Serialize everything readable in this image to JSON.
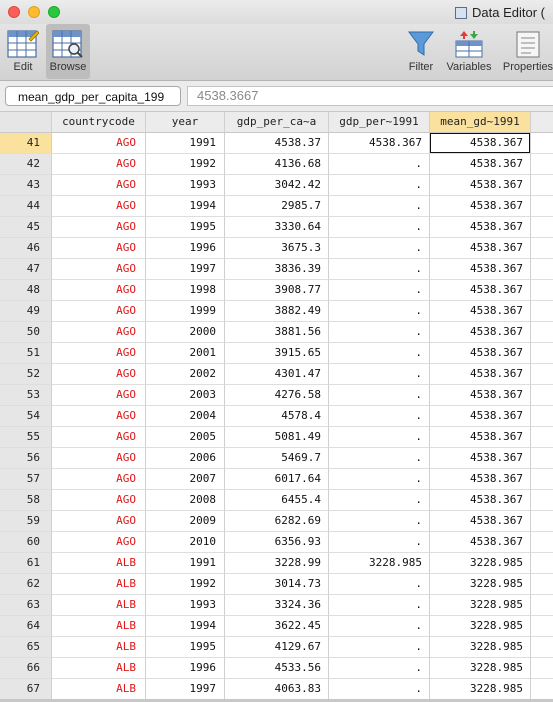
{
  "window": {
    "title": "Data Editor ("
  },
  "toolbar": {
    "edit_label": "Edit",
    "browse_label": "Browse",
    "filter_label": "Filter",
    "variables_label": "Variables",
    "properties_label": "Properties"
  },
  "cmdbar": {
    "varname": "mean_gdp_per_capita_199",
    "value": "4538.3667"
  },
  "columns": [
    "",
    "countrycode",
    "year",
    "gdp_per_ca~a",
    "gdp_per~1991",
    "mean_gd~1991"
  ],
  "rows": [
    [
      "41",
      "AGO",
      "1991",
      "4538.37",
      "4538.367",
      "4538.367"
    ],
    [
      "42",
      "AGO",
      "1992",
      "4136.68",
      ".",
      "4538.367"
    ],
    [
      "43",
      "AGO",
      "1993",
      "3042.42",
      ".",
      "4538.367"
    ],
    [
      "44",
      "AGO",
      "1994",
      "2985.7",
      ".",
      "4538.367"
    ],
    [
      "45",
      "AGO",
      "1995",
      "3330.64",
      ".",
      "4538.367"
    ],
    [
      "46",
      "AGO",
      "1996",
      "3675.3",
      ".",
      "4538.367"
    ],
    [
      "47",
      "AGO",
      "1997",
      "3836.39",
      ".",
      "4538.367"
    ],
    [
      "48",
      "AGO",
      "1998",
      "3908.77",
      ".",
      "4538.367"
    ],
    [
      "49",
      "AGO",
      "1999",
      "3882.49",
      ".",
      "4538.367"
    ],
    [
      "50",
      "AGO",
      "2000",
      "3881.56",
      ".",
      "4538.367"
    ],
    [
      "51",
      "AGO",
      "2001",
      "3915.65",
      ".",
      "4538.367"
    ],
    [
      "52",
      "AGO",
      "2002",
      "4301.47",
      ".",
      "4538.367"
    ],
    [
      "53",
      "AGO",
      "2003",
      "4276.58",
      ".",
      "4538.367"
    ],
    [
      "54",
      "AGO",
      "2004",
      "4578.4",
      ".",
      "4538.367"
    ],
    [
      "55",
      "AGO",
      "2005",
      "5081.49",
      ".",
      "4538.367"
    ],
    [
      "56",
      "AGO",
      "2006",
      "5469.7",
      ".",
      "4538.367"
    ],
    [
      "57",
      "AGO",
      "2007",
      "6017.64",
      ".",
      "4538.367"
    ],
    [
      "58",
      "AGO",
      "2008",
      "6455.4",
      ".",
      "4538.367"
    ],
    [
      "59",
      "AGO",
      "2009",
      "6282.69",
      ".",
      "4538.367"
    ],
    [
      "60",
      "AGO",
      "2010",
      "6356.93",
      ".",
      "4538.367"
    ],
    [
      "61",
      "ALB",
      "1991",
      "3228.99",
      "3228.985",
      "3228.985"
    ],
    [
      "62",
      "ALB",
      "1992",
      "3014.73",
      ".",
      "3228.985"
    ],
    [
      "63",
      "ALB",
      "1993",
      "3324.36",
      ".",
      "3228.985"
    ],
    [
      "64",
      "ALB",
      "1994",
      "3622.45",
      ".",
      "3228.985"
    ],
    [
      "65",
      "ALB",
      "1995",
      "4129.67",
      ".",
      "3228.985"
    ],
    [
      "66",
      "ALB",
      "1996",
      "4533.56",
      ".",
      "3228.985"
    ],
    [
      "67",
      "ALB",
      "1997",
      "4063.83",
      ".",
      "3228.985"
    ]
  ],
  "selection": {
    "row_label": "41",
    "column": "mean_gd~1991"
  },
  "colors": {
    "string_text": "#e01818",
    "selected_header": "#fbe19e"
  }
}
